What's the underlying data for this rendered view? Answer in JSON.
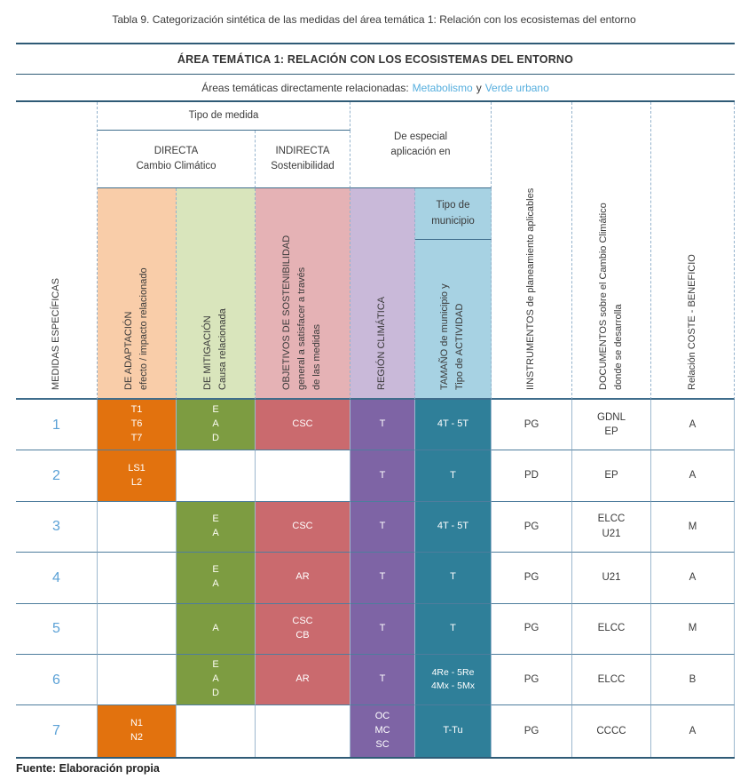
{
  "title": "Tabla 9. Categorización sintética de las medidas del área temática 1: Relación con los ecosistemas del entorno",
  "table": {
    "area_title": "ÁREA TEMÁTICA 1: RELACIÓN CON LOS ECOSISTEMAS DEL ENTORNO",
    "related": {
      "prefix": "Áreas temáticas directamente relacionadas:",
      "link1": "Metabolismo",
      "conjunction": "y",
      "link2": "Verde urbano"
    },
    "header": {
      "medidas": "MEDIDAS ESPECÍFICAS",
      "tipo_de_medida": "Tipo de medida",
      "directa": [
        "DIRECTA",
        "Cambio Climático"
      ],
      "indirecta": [
        "INDIRECTA",
        "Sostenibilidad"
      ],
      "especial": [
        "De especial",
        "aplicación en"
      ],
      "tipo_municipio": [
        "Tipo de",
        "municipio"
      ],
      "adaptacion": [
        "DE ADAPTACIÓN",
        "efecto / impacto  relacionado"
      ],
      "mitigacion": [
        "DE MITIGACIÓN",
        "Causa  relacionada"
      ],
      "objetivos": [
        "OBJETIVOS DE SOSTENIBILIDAD",
        "general a satisfacer a través",
        "de las medidas"
      ],
      "region": "REGIÓN CLIMÁTICA",
      "tamano": [
        "TAMAÑO de municipio y",
        "Tipo de ACTIVIDAD"
      ],
      "instrumentos": "IINSTRUMENTOS de planeamiento aplicables",
      "documentos": [
        "DOCUMENTOS sobre el Cambio Climático",
        "donde se desarrolla"
      ],
      "coste": "Relación COSTE - BENEFICIO"
    },
    "rows": [
      {
        "num": "1",
        "adapt": [
          "T1",
          "T6",
          "T7"
        ],
        "mitig": [
          "E",
          "A",
          "D"
        ],
        "objetivos": [
          "CSC"
        ],
        "region": [
          "T"
        ],
        "tamano": [
          "4T - 5T"
        ],
        "instrumentos": "PG",
        "documentos": [
          "GDNL",
          "EP"
        ],
        "coste": "A"
      },
      {
        "num": "2",
        "adapt": [
          "LS1",
          "L2"
        ],
        "mitig": [],
        "objetivos": [],
        "region": [
          "T"
        ],
        "tamano": [
          "T"
        ],
        "instrumentos": "PD",
        "documentos": [
          "EP"
        ],
        "coste": "A"
      },
      {
        "num": "3",
        "adapt": [],
        "mitig": [
          "E",
          "A"
        ],
        "objetivos": [
          "CSC"
        ],
        "region": [
          "T"
        ],
        "tamano": [
          "4T - 5T"
        ],
        "instrumentos": "PG",
        "documentos": [
          "ELCC",
          "U21"
        ],
        "coste": "M"
      },
      {
        "num": "4",
        "adapt": [],
        "mitig": [
          "E",
          "A"
        ],
        "objetivos": [
          "AR"
        ],
        "region": [
          "T"
        ],
        "tamano": [
          "T"
        ],
        "instrumentos": "PG",
        "documentos": [
          "U21"
        ],
        "coste": "A"
      },
      {
        "num": "5",
        "adapt": [],
        "mitig": [
          "A"
        ],
        "objetivos": [
          "CSC",
          "CB"
        ],
        "region": [
          "T"
        ],
        "tamano": [
          "T"
        ],
        "instrumentos": "PG",
        "documentos": [
          "ELCC"
        ],
        "coste": "M"
      },
      {
        "num": "6",
        "adapt": [],
        "mitig": [
          "E",
          "A",
          "D"
        ],
        "objetivos": [
          "AR"
        ],
        "region": [
          "T"
        ],
        "tamano": [
          "4Re - 5Re",
          "4Mx - 5Mx"
        ],
        "instrumentos": "PG",
        "documentos": [
          "ELCC"
        ],
        "coste": "B"
      },
      {
        "num": "7",
        "adapt": [
          "N1",
          "N2"
        ],
        "mitig": [],
        "objetivos": [],
        "region": [
          "OC",
          "MC",
          "SC"
        ],
        "tamano": [
          "T-Tu"
        ],
        "instrumentos": "PG",
        "documentos": [
          "CCCC"
        ],
        "coste": "A"
      }
    ],
    "footer": "Fuente: Elaboración propia"
  },
  "colors": {
    "accent_link_blue": "#55aede",
    "row_number_blue": "#5ba1d6",
    "orange": "#e2720e",
    "orange_light": "#f9cda9",
    "green": "#7d9c41",
    "green_light": "#d9e5bc",
    "red": "#ca6a6e",
    "red_light": "#e5b2b5",
    "purple": "#7e64a5",
    "purple_light": "#c9b9d9",
    "teal": "#2f7f99",
    "blue_light": "#a7d2e3",
    "line_dark": "#2f5b76",
    "line_mid": "#4e7d9d",
    "line_light": "#9cb7ce"
  }
}
